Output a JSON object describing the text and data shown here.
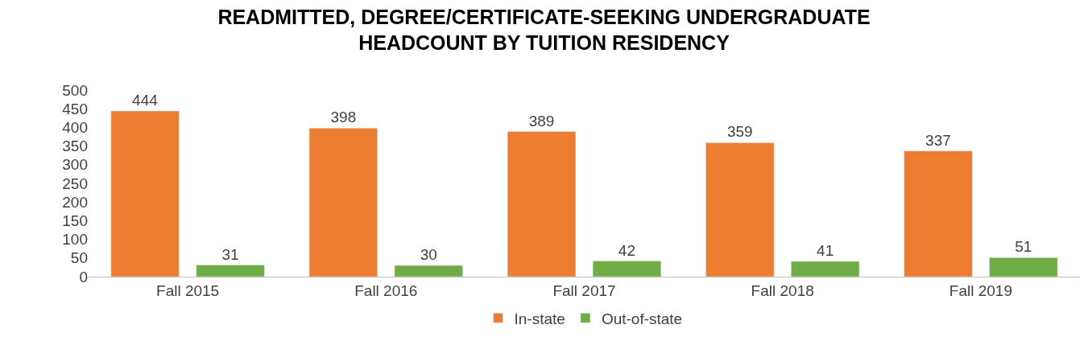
{
  "chart_data": {
    "type": "bar",
    "title": "READMITTED, DEGREE/CERTIFICATE-SEEKING UNDERGRADUATE HEADCOUNT BY TUITION RESIDENCY",
    "categories": [
      "Fall 2015",
      "Fall 2016",
      "Fall 2017",
      "Fall 2018",
      "Fall 2019"
    ],
    "series": [
      {
        "name": "In-state",
        "color": "#ed7d31",
        "values": [
          444,
          398,
          389,
          359,
          337
        ]
      },
      {
        "name": "Out-of-state",
        "color": "#70ad47",
        "values": [
          31,
          30,
          42,
          41,
          51
        ]
      }
    ],
    "ylim": [
      0,
      500
    ],
    "yticks": [
      0,
      50,
      100,
      150,
      200,
      250,
      300,
      350,
      400,
      450,
      500
    ],
    "data_labels": true,
    "legend": "bottom",
    "grid": false
  }
}
